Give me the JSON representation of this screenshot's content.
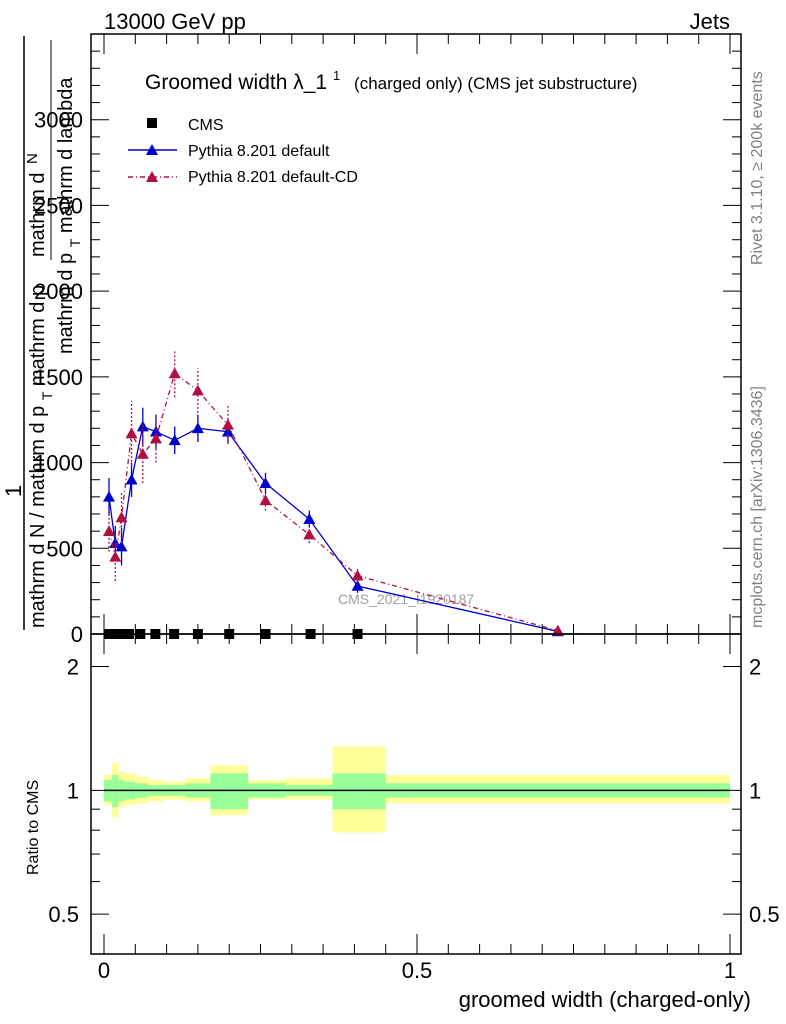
{
  "header": {
    "left": "13000 GeV pp",
    "right": "Jets"
  },
  "side_text": {
    "rivet": "Rivet 3.1.10, ≥ 200k events",
    "mcplots": "mcplots.cern.ch [arXiv:1306.3436]"
  },
  "main_panel": {
    "title_main": "Groomed width",
    "title_symbol": "λ_1",
    "title_sup": "1",
    "title_suffix": "(charged only) (CMS jet substructure)",
    "ylabel_top": "1",
    "ylabel_frac_num": "mathrm d",
    "ylabel_frac_num2": "N",
    "ylabel_line2": "mathrm d p",
    "ylabel_line2_sub": "T",
    "ylabel_line2_tail": " mathrm d lambda",
    "ylabel_den": "mathrm d N / mathrm d p",
    "ylabel_den_sub": "T",
    "ylabel_den_tail": " mathrm d p",
    "watermark": "CMS_2021_I1920187",
    "yticks": [
      "0",
      "500",
      "1000",
      "1500",
      "2000",
      "2500",
      "3000"
    ]
  },
  "ratio_panel": {
    "ylabel": "Ratio to CMS",
    "yticks": [
      "0.5",
      "1",
      "2"
    ]
  },
  "xaxis": {
    "label": "groomed width (charged-only)",
    "ticks": [
      "0",
      "0.5",
      "1"
    ]
  },
  "legend": {
    "cms": "CMS",
    "pythia_default": "Pythia 8.201 default",
    "pythia_cd": "Pythia 8.201 default-CD"
  },
  "colors": {
    "cms": "#000000",
    "pythia_default": "#0000cc",
    "pythia_cd": "#b01040",
    "band_inner": "#99ff99",
    "band_outer": "#ffff99"
  },
  "chart_data": [
    {
      "type": "line",
      "title": "Groomed width λ_1^1 (charged only) (CMS jet substructure)",
      "xlabel": "groomed width (charged-only)",
      "xlim": [
        0,
        1
      ],
      "ylim": [
        0,
        3500
      ],
      "grid": false,
      "legend_position": "top-left",
      "series": [
        {
          "name": "CMS",
          "x": [
            0.008,
            0.018,
            0.028,
            0.04,
            0.058,
            0.082,
            0.112,
            0.15,
            0.2,
            0.258,
            0.33,
            0.405
          ],
          "values": [
            0,
            0,
            0,
            0,
            0,
            0,
            0,
            0,
            0,
            0,
            0,
            0
          ]
        },
        {
          "name": "Pythia 8.201 default",
          "x": [
            0.008,
            0.018,
            0.028,
            0.044,
            0.062,
            0.083,
            0.113,
            0.15,
            0.198,
            0.258,
            0.328,
            0.405,
            0.725
          ],
          "values": [
            800,
            530,
            510,
            900,
            1210,
            1180,
            1130,
            1200,
            1180,
            880,
            670,
            280,
            15
          ],
          "errors": [
            110,
            100,
            110,
            100,
            110,
            100,
            80,
            80,
            70,
            60,
            50,
            40,
            10
          ]
        },
        {
          "name": "Pythia 8.201 default-CD",
          "x": [
            0.008,
            0.018,
            0.028,
            0.044,
            0.062,
            0.083,
            0.113,
            0.15,
            0.198,
            0.258,
            0.328,
            0.405,
            0.725
          ],
          "values": [
            600,
            450,
            680,
            1170,
            1050,
            1140,
            1520,
            1420,
            1220,
            780,
            580,
            340,
            20
          ],
          "errors": [
            120,
            140,
            150,
            190,
            170,
            140,
            140,
            130,
            110,
            60,
            50,
            40,
            10
          ]
        }
      ]
    },
    {
      "type": "area",
      "title": "",
      "ylabel": "Ratio to CMS",
      "xlim": [
        0,
        1
      ],
      "ylim": [
        0.4,
        2.4
      ],
      "log_y": true,
      "reference": 1,
      "bins": [
        0,
        0.013,
        0.023,
        0.033,
        0.05,
        0.07,
        0.095,
        0.13,
        0.17,
        0.23,
        0.29,
        0.365,
        0.45,
        1.0
      ],
      "inner_band": [
        [
          0.94,
          1.06
        ],
        [
          0.91,
          1.09
        ],
        [
          0.94,
          1.06
        ],
        [
          0.95,
          1.05
        ],
        [
          0.96,
          1.04
        ],
        [
          0.97,
          1.03
        ],
        [
          0.97,
          1.03
        ],
        [
          0.96,
          1.04
        ],
        [
          0.9,
          1.1
        ],
        [
          0.96,
          1.04
        ],
        [
          0.97,
          1.03
        ],
        [
          0.9,
          1.1
        ],
        [
          0.96,
          1.04
        ]
      ],
      "outer_band": [
        [
          0.92,
          1.09
        ],
        [
          0.86,
          1.17
        ],
        [
          0.91,
          1.11
        ],
        [
          0.92,
          1.1
        ],
        [
          0.93,
          1.08
        ],
        [
          0.94,
          1.06
        ],
        [
          0.95,
          1.05
        ],
        [
          0.94,
          1.07
        ],
        [
          0.87,
          1.15
        ],
        [
          0.95,
          1.06
        ],
        [
          0.95,
          1.07
        ],
        [
          0.79,
          1.28
        ],
        [
          0.93,
          1.09
        ]
      ]
    }
  ]
}
